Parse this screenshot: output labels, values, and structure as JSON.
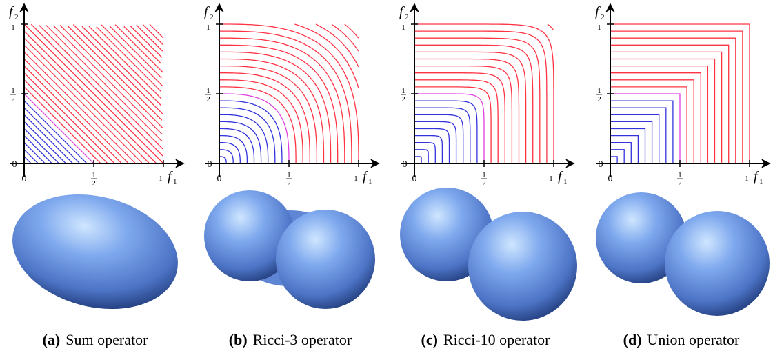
{
  "axes": {
    "x_label": "f",
    "x_sub": "1",
    "y_label": "f",
    "y_sub": "2",
    "zero": "0",
    "half": {
      "numerator": "1",
      "denominator": "2"
    },
    "one": "1"
  },
  "panels": [
    {
      "label": "(a)",
      "caption": "Sum operator"
    },
    {
      "label": "(b)",
      "caption": "Ricci-3 operator"
    },
    {
      "label": "(c)",
      "caption": "Ricci-10 operator"
    },
    {
      "label": "(d)",
      "caption": "Union operator"
    }
  ]
}
